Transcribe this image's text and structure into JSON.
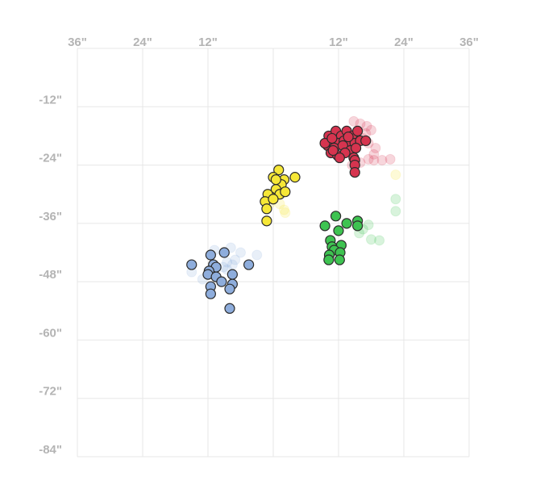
{
  "chart_data": {
    "type": "scatter",
    "title": "",
    "xlabel": "",
    "ylabel": "",
    "xlim": [
      -36,
      36
    ],
    "ylim": [
      -84,
      0
    ],
    "grid": true,
    "legend": "none",
    "x_ticks": [
      {
        "value": -36,
        "label": "36\""
      },
      {
        "value": -24,
        "label": "24\""
      },
      {
        "value": -12,
        "label": "12\""
      },
      {
        "value": 12,
        "label": "12\""
      },
      {
        "value": 24,
        "label": "24\""
      },
      {
        "value": 36,
        "label": "36\""
      }
    ],
    "y_ticks": [
      {
        "value": -12,
        "label": "-12\""
      },
      {
        "value": -24,
        "label": "-24\""
      },
      {
        "value": -36,
        "label": "-36\""
      },
      {
        "value": -48,
        "label": "-48\""
      },
      {
        "value": -60,
        "label": "-60\""
      },
      {
        "value": -72,
        "label": "-72\""
      },
      {
        "value": -84,
        "label": "-84\""
      }
    ],
    "series": [
      {
        "color": "#d6344f",
        "points": [
          [
            10.2,
            -18
          ],
          [
            11.5,
            -17
          ],
          [
            12.5,
            -18
          ],
          [
            13.5,
            -17
          ],
          [
            14.5,
            -18
          ],
          [
            15.5,
            -17
          ],
          [
            11,
            -19
          ],
          [
            12,
            -19.5
          ],
          [
            13,
            -19
          ],
          [
            14,
            -20
          ],
          [
            15,
            -19.5
          ],
          [
            16,
            -19
          ],
          [
            17,
            -19
          ],
          [
            10,
            -20
          ],
          [
            11.2,
            -20.5
          ],
          [
            12.8,
            -20
          ],
          [
            14.2,
            -21
          ],
          [
            15.2,
            -20.5
          ],
          [
            10.6,
            -21.5
          ],
          [
            11.8,
            -22
          ],
          [
            13.2,
            -21.5
          ],
          [
            12.2,
            -22.5
          ],
          [
            14.8,
            -22.5
          ],
          [
            9.5,
            -19.5
          ],
          [
            10.8,
            -18.5
          ],
          [
            15,
            -23
          ],
          [
            15,
            -24
          ],
          [
            15,
            -25.5
          ],
          [
            13.8,
            -18.2
          ],
          [
            11,
            -21
          ]
        ]
      },
      {
        "color": "#f6e737",
        "points": [
          [
            1,
            -25
          ],
          [
            2,
            -27
          ],
          [
            0,
            -26.5
          ],
          [
            1.5,
            -28
          ],
          [
            0.5,
            -29
          ],
          [
            -0.5,
            -30.5
          ],
          [
            1.2,
            -30
          ],
          [
            2.2,
            -29.5
          ],
          [
            -1,
            -30
          ],
          [
            -1.5,
            -31.5
          ],
          [
            0,
            -31
          ],
          [
            -1.2,
            -33
          ],
          [
            -1.2,
            -35.5
          ],
          [
            4,
            -26.5
          ],
          [
            0.5,
            -27
          ]
        ]
      },
      {
        "color": "#3ec351",
        "points": [
          [
            12,
            -37.5
          ],
          [
            10.5,
            -39.5
          ],
          [
            12.5,
            -40.5
          ],
          [
            10.8,
            -40.8
          ],
          [
            11.2,
            -41.5
          ],
          [
            12.3,
            -42
          ],
          [
            10.3,
            -42.5
          ],
          [
            12.2,
            -43.5
          ],
          [
            10.2,
            -43.5
          ],
          [
            11.5,
            -34.5
          ],
          [
            9.5,
            -36.5
          ],
          [
            13.5,
            -36
          ],
          [
            15.5,
            -35.5
          ],
          [
            15.5,
            -36.5
          ]
        ]
      },
      {
        "color": "#8eaddc",
        "points": [
          [
            -9,
            -42
          ],
          [
            -11,
            -44.5
          ],
          [
            -15,
            -44.5
          ],
          [
            -10.5,
            -45
          ],
          [
            -11.8,
            -45.8
          ],
          [
            -12,
            -46.5
          ],
          [
            -7.5,
            -46.5
          ],
          [
            -10.5,
            -47
          ],
          [
            -9.5,
            -48
          ],
          [
            -7.5,
            -48.5
          ],
          [
            -11.5,
            -49
          ],
          [
            -8,
            -49.5
          ],
          [
            -11.5,
            -50.5
          ],
          [
            -4.5,
            -44.5
          ],
          [
            -11.5,
            -42.5
          ],
          [
            -8,
            -53.5
          ]
        ]
      }
    ],
    "faded_series": [
      {
        "color": "#d6344f",
        "points": [
          [
            14.8,
            -15
          ],
          [
            16,
            -15.5
          ],
          [
            17.2,
            -16
          ],
          [
            18,
            -16.8
          ],
          [
            16.5,
            -18.5
          ],
          [
            17.5,
            -19.5
          ],
          [
            18.8,
            -20.5
          ],
          [
            18.5,
            -21.8
          ],
          [
            17.5,
            -22.8
          ],
          [
            16,
            -23.5
          ],
          [
            14.5,
            -24
          ],
          [
            18.5,
            -23
          ],
          [
            20,
            -23
          ],
          [
            21.5,
            -22.8
          ],
          [
            17,
            -17.5
          ]
        ]
      },
      {
        "color": "#f6e737",
        "points": [
          [
            22.5,
            -26
          ],
          [
            1.2,
            -32
          ],
          [
            2,
            -33.2
          ],
          [
            2.2,
            -33.8
          ],
          [
            -0.5,
            -31.8
          ]
        ]
      },
      {
        "color": "#3ec351",
        "points": [
          [
            22.5,
            -31
          ],
          [
            22.5,
            -33.5
          ],
          [
            17.5,
            -36.3
          ],
          [
            16.5,
            -37.2
          ],
          [
            15.8,
            -38
          ],
          [
            18,
            -39.3
          ],
          [
            19.5,
            -39.5
          ]
        ]
      },
      {
        "color": "#8eaddc",
        "points": [
          [
            -3,
            -42.5
          ],
          [
            -6,
            -42
          ],
          [
            -7.8,
            -41
          ],
          [
            -10.8,
            -41.5
          ],
          [
            -7.5,
            -44.5
          ],
          [
            -8.5,
            -44
          ],
          [
            -7,
            -43.5
          ],
          [
            -9.2,
            -45
          ],
          [
            -15,
            -46
          ],
          [
            -13,
            -47.5
          ],
          [
            -8.5,
            -45.5
          ]
        ]
      }
    ]
  }
}
